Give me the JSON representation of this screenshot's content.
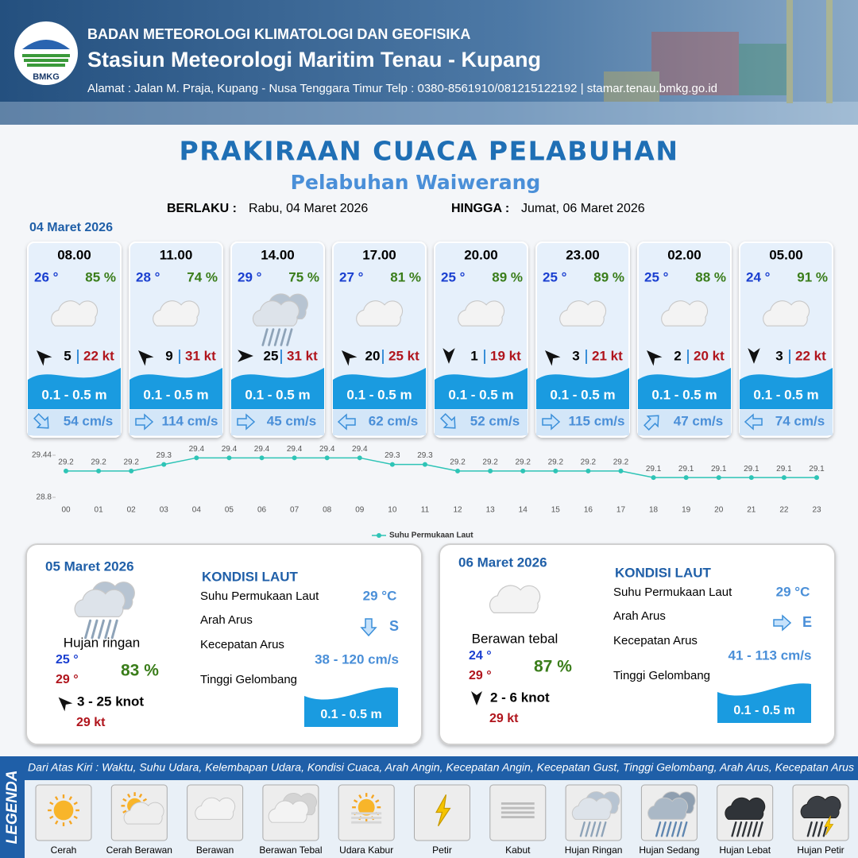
{
  "header": {
    "logo": "BMKG",
    "organization": "BADAN METEOROLOGI KLIMATOLOGI DAN GEOFISIKA",
    "station": "Stasiun Meteorologi Maritim Tenau - Kupang",
    "address": "Alamat : Jalan M. Praja, Kupang - Nusa Tenggara Timur Telp : 0380-8561910/081215122192  | stamar.tenau.bmkg.go.id"
  },
  "title": "PRAKIRAAN CUACA PELABUHAN",
  "subtitle": "Pelabuhan Waiwerang",
  "validity": {
    "from_label": "BERLAKU :",
    "from": "Rabu, 04 Maret 2026",
    "until_label": "HINGGA :",
    "until": "Jumat, 06 Maret 2026"
  },
  "day1": {
    "date": "04 Maret 2026",
    "cards": [
      {
        "time": "08.00",
        "temp": "26 °",
        "humidity": "85 %",
        "wind": "5",
        "gust": "22 kt",
        "wave": "0.1 - 0.5 m",
        "current": "54 cm/s"
      },
      {
        "time": "11.00",
        "temp": "28 °",
        "humidity": "74 %",
        "wind": "9",
        "gust": "31 kt",
        "wave": "0.1 - 0.5 m",
        "current": "114 cm/s"
      },
      {
        "time": "14.00",
        "temp": "29 °",
        "humidity": "75 %",
        "wind": "25",
        "gust": "31 kt",
        "wave": "0.1 - 0.5 m",
        "current": "45 cm/s"
      },
      {
        "time": "17.00",
        "temp": "27 °",
        "humidity": "81 %",
        "wind": "20",
        "gust": "25 kt",
        "wave": "0.1 - 0.5 m",
        "current": "62 cm/s"
      },
      {
        "time": "20.00",
        "temp": "25 °",
        "humidity": "89 %",
        "wind": "1",
        "gust": "19 kt",
        "wave": "0.1 - 0.5 m",
        "current": "52 cm/s"
      },
      {
        "time": "23.00",
        "temp": "25 °",
        "humidity": "89 %",
        "wind": "3",
        "gust": "21 kt",
        "wave": "0.1 - 0.5 m",
        "current": "115 cm/s"
      },
      {
        "time": "02.00",
        "temp": "25 °",
        "humidity": "88 %",
        "wind": "2",
        "gust": "20 kt",
        "wave": "0.1 - 0.5 m",
        "current": "47 cm/s"
      },
      {
        "time": "05.00",
        "temp": "24 °",
        "humidity": "91 %",
        "wind": "3",
        "gust": "22 kt",
        "wave": "0.1 - 0.5 m",
        "current": "74 cm/s"
      }
    ]
  },
  "chart_data": {
    "type": "line",
    "categories": [
      "00",
      "01",
      "02",
      "03",
      "04",
      "05",
      "06",
      "07",
      "08",
      "09",
      "10",
      "11",
      "12",
      "13",
      "14",
      "15",
      "16",
      "17",
      "18",
      "19",
      "20",
      "21",
      "22",
      "23"
    ],
    "series": [
      {
        "name": "Suhu Permukaan Laut",
        "color": "#2ec4b6",
        "values": [
          29.2,
          29.2,
          29.2,
          29.3,
          29.4,
          29.4,
          29.4,
          29.4,
          29.4,
          29.4,
          29.3,
          29.3,
          29.2,
          29.2,
          29.2,
          29.2,
          29.2,
          29.2,
          29.1,
          29.1,
          29.1,
          29.1,
          29.1,
          29.1
        ]
      }
    ],
    "ylim": [
      28.8,
      29.44
    ],
    "yticks": [
      28.8,
      29.44
    ]
  },
  "day2": {
    "date": "05 Maret 2026",
    "condition": "Hujan ringan",
    "temp_min": "25 °",
    "temp_max": "29 °",
    "humidity": "83 %",
    "wind": "3 - 25 knot",
    "gust": "29 kt",
    "sea": {
      "title": "KONDISI LAUT",
      "sst_label": "Suhu Permukaan Laut",
      "sst": "29 °C",
      "current_dir_label": "Arah Arus",
      "current_dir": "S",
      "current_speed_label": "Kecepatan Arus",
      "current_speed": "38 - 120 cm/s",
      "wave_label": "Tinggi Gelombang",
      "wave": "0.1 - 0.5 m"
    }
  },
  "day3": {
    "date": "06 Maret 2026",
    "condition": "Berawan tebal",
    "temp_min": "24 °",
    "temp_max": "29 °",
    "humidity": "87 %",
    "wind": "2 - 6 knot",
    "gust": "29 kt",
    "sea": {
      "title": "KONDISI LAUT",
      "sst_label": "Suhu Permukaan Laut",
      "sst": "29 °C",
      "current_dir_label": "Arah Arus",
      "current_dir": "E",
      "current_speed_label": "Kecepatan Arus",
      "current_speed": "41 - 113 cm/s",
      "wave_label": "Tinggi Gelombang",
      "wave": "0.1 - 0.5 m"
    }
  },
  "legend": {
    "title": "LEGENDA",
    "description": "Dari Atas Kiri : Waktu, Suhu Udara, Kelembapan Udara, Kondisi Cuaca, Arah Angin, Kecepatan Angin, Kecepatan Gust, Tinggi Gelombang, Arah Arus, Kecepatan Arus",
    "items": [
      "Cerah",
      "Cerah Berawan",
      "Berawan",
      "Berawan Tebal",
      "Udara Kabur",
      "Petir",
      "Kabut",
      "Hujan Ringan",
      "Hujan Sedang",
      "Hujan Lebat",
      "Hujan Petir"
    ]
  }
}
